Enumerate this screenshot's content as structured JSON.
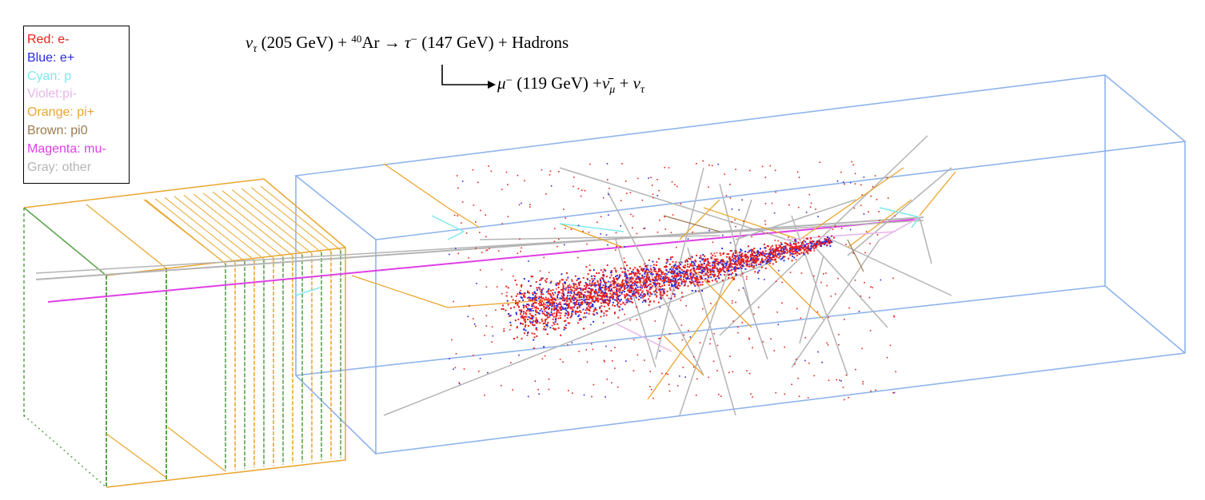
{
  "legend": {
    "items": [
      {
        "label": "Red: e-",
        "color": "#e8211b"
      },
      {
        "label": "Blue: e+",
        "color": "#2a2ae0"
      },
      {
        "label": "Cyan: p",
        "color": "#7fe9ec"
      },
      {
        "label": "Violet:pi-",
        "color": "#e7b4e8"
      },
      {
        "label": "Orange: pi+",
        "color": "#e9a62e"
      },
      {
        "label": "Brown: pi0",
        "color": "#9b7b4e"
      },
      {
        "label": "Magenta: mu-",
        "color": "#df3fe6"
      },
      {
        "label": "Gray: other",
        "color": "#b4b4b4"
      }
    ]
  },
  "equation": {
    "nu_tau": "ν",
    "tau_sub": "τ",
    "nu_energy": " (205 GeV) + ",
    "ar_mass": "40",
    "ar": "Ar → ",
    "tau": "τ",
    "tau_charge": "−",
    "tau_energy": " (147 GeV) + Hadrons",
    "mu": "μ",
    "mu_charge": "−",
    "mu_energy": " (119 GeV) +",
    "nubar": "ν̄",
    "nubar_sub": "μ",
    "plus": " + ",
    "nu2": "ν",
    "nu2_sub": "τ"
  },
  "colors": {
    "electron": "#e8211b",
    "positron": "#2a2ae0",
    "proton": "#7fe9ec",
    "pion_minus": "#e7b4e8",
    "pion_plus": "#e9a62e",
    "pion_zero": "#9b7b4e",
    "muon": "#df3fe6",
    "other": "#b4b4b4",
    "detector_box": "#8fb4ec",
    "module_green": "#5aa34a",
    "module_orange": "#e9a62e"
  }
}
